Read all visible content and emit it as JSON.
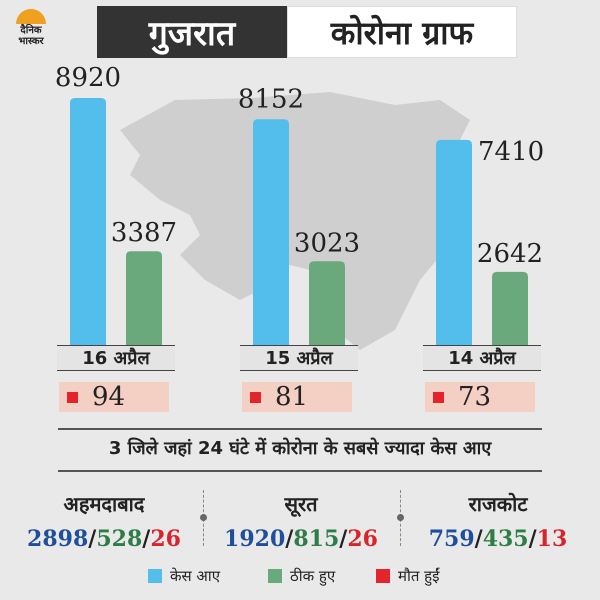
{
  "logo": {
    "line1": "दैनिक",
    "line2": "भास्कर"
  },
  "header": {
    "state": "गुजरात",
    "title": "कोरोना ग्राफ"
  },
  "chart_data": {
    "type": "bar",
    "categories": [
      "16 अप्रैल",
      "15 अप्रैल",
      "14 अप्रैल"
    ],
    "series": [
      {
        "name": "केस आए",
        "values": [
          8920,
          8152,
          7410
        ],
        "color": "#53bdec"
      },
      {
        "name": "ठीक हुए",
        "values": [
          3387,
          3023,
          2642
        ],
        "color": "#6aa97c"
      },
      {
        "name": "मौत हुईं",
        "values": [
          94,
          81,
          73
        ],
        "color": "#e3242b"
      }
    ],
    "ylim": [
      0,
      9500
    ]
  },
  "subtitle": "3 जिले जहां 24 घंटे में कोरोना के सबसे ज्यादा केस आए",
  "districts": [
    {
      "name": "अहमदाबाद",
      "cases": "2898",
      "recovered": "528",
      "deaths": "26"
    },
    {
      "name": "सूरत",
      "cases": "1920",
      "recovered": "815",
      "deaths": "26"
    },
    {
      "name": "राजकोट",
      "cases": "759",
      "recovered": "435",
      "deaths": "13"
    }
  ],
  "separator": "/",
  "legend": [
    {
      "label": "केस आए",
      "color": "#53bdec"
    },
    {
      "label": "ठीक हुए",
      "color": "#6aa97c"
    },
    {
      "label": "मौत हुईं",
      "color": "#e3242b"
    }
  ]
}
